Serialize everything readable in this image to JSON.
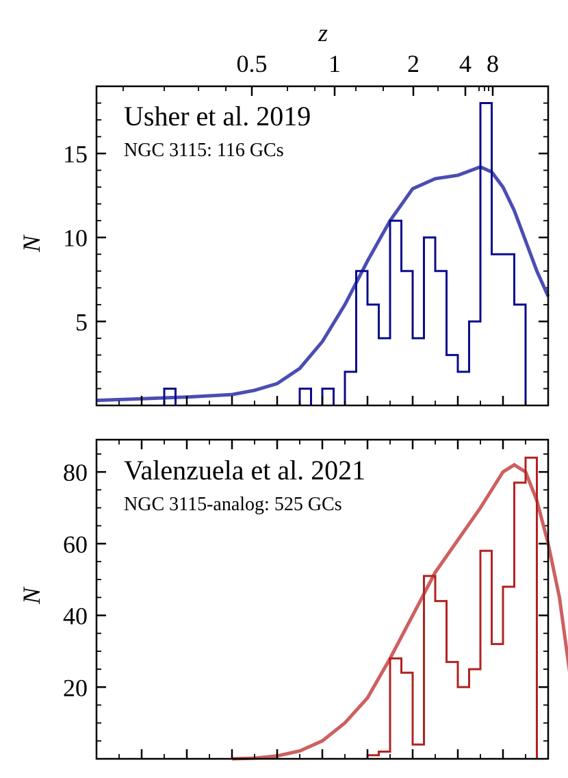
{
  "top_axis": {
    "label": "z",
    "tick_labels": [
      "0.5",
      "1",
      "2",
      "4",
      "8"
    ]
  },
  "chart_data": [
    {
      "type": "bar",
      "panel": "top",
      "title": "Usher et al. 2019",
      "subtitle": "NGC 3115: 116 GCs",
      "ylabel": "N",
      "xlabel": "",
      "ylim": [
        0,
        19
      ],
      "ytick_values": [
        5,
        10,
        15
      ],
      "ytick_labels": [
        "5",
        "10",
        "15"
      ],
      "yminor_step": 1,
      "hist_color": "#0b0b8c",
      "curve_color": "#4b4db4",
      "bins": [
        {
          "edges": [
            3.0,
            3.5
          ],
          "count": 1
        },
        {
          "edges": [
            9.0,
            9.5
          ],
          "count": 1
        },
        {
          "edges": [
            10.0,
            10.5
          ],
          "count": 1
        },
        {
          "edges": [
            11.0,
            11.5
          ],
          "count": 2
        },
        {
          "edges": [
            11.5,
            12.0
          ],
          "count": 8
        },
        {
          "edges": [
            12.0,
            12.5
          ],
          "count": 6
        },
        {
          "edges": [
            12.5,
            13.0
          ],
          "count": 4
        },
        {
          "edges": [
            13.0,
            13.5
          ],
          "count": 11
        },
        {
          "edges": [
            13.5,
            14.0
          ],
          "count": 8
        },
        {
          "edges": [
            14.0,
            14.5
          ],
          "count": 4
        },
        {
          "edges": [
            14.5,
            15.0
          ],
          "count": 10
        },
        {
          "edges": [
            15.0,
            15.5
          ],
          "count": 8
        },
        {
          "edges": [
            15.5,
            16.0
          ],
          "count": 3
        },
        {
          "edges": [
            16.0,
            16.5
          ],
          "count": 2
        },
        {
          "edges": [
            16.5,
            17.0
          ],
          "count": 5
        },
        {
          "edges": [
            17.0,
            17.5
          ],
          "count": 18
        },
        {
          "edges": [
            17.5,
            18.0
          ],
          "count": 9
        },
        {
          "edges": [
            18.0,
            18.5
          ],
          "count": 9
        },
        {
          "edges": [
            18.5,
            19.0
          ],
          "count": 6
        }
      ],
      "curve": {
        "x": [
          0,
          2,
          4,
          6,
          7,
          8,
          9,
          10,
          11,
          12,
          13,
          14,
          15,
          16,
          17,
          17.5,
          18,
          18.5,
          19,
          19.5,
          20
        ],
        "y": [
          0.3,
          0.4,
          0.5,
          0.65,
          0.9,
          1.3,
          2.2,
          3.8,
          6.0,
          8.6,
          11.0,
          12.9,
          13.5,
          13.7,
          14.2,
          13.9,
          13.0,
          11.6,
          9.8,
          8.0,
          6.5
        ]
      }
    },
    {
      "type": "bar",
      "panel": "bottom",
      "title": "Valenzuela et al. 2021",
      "subtitle": "NGC 3115-analog: 525 GCs",
      "ylabel": "N",
      "xlabel": "",
      "ylim": [
        0,
        89
      ],
      "ytick_values": [
        20,
        40,
        60,
        80
      ],
      "ytick_labels": [
        "20",
        "40",
        "60",
        "80"
      ],
      "yminor_step": 5,
      "hist_color": "#b22222",
      "curve_color": "#cd6060",
      "bins": [
        {
          "edges": [
            12.0,
            12.5
          ],
          "count": 1
        },
        {
          "edges": [
            12.5,
            13.0
          ],
          "count": 2
        },
        {
          "edges": [
            13.0,
            13.5
          ],
          "count": 28
        },
        {
          "edges": [
            13.5,
            14.0
          ],
          "count": 24
        },
        {
          "edges": [
            14.0,
            14.5
          ],
          "count": 4
        },
        {
          "edges": [
            14.5,
            15.0
          ],
          "count": 51
        },
        {
          "edges": [
            15.0,
            15.5
          ],
          "count": 44
        },
        {
          "edges": [
            15.5,
            16.0
          ],
          "count": 27
        },
        {
          "edges": [
            16.0,
            16.5
          ],
          "count": 20
        },
        {
          "edges": [
            16.5,
            17.0
          ],
          "count": 25
        },
        {
          "edges": [
            17.0,
            17.5
          ],
          "count": 58
        },
        {
          "edges": [
            17.5,
            18.0
          ],
          "count": 32
        },
        {
          "edges": [
            18.0,
            18.5
          ],
          "count": 48
        },
        {
          "edges": [
            18.5,
            19.0
          ],
          "count": 77
        },
        {
          "edges": [
            19.0,
            19.5
          ],
          "count": 84
        }
      ],
      "curve": {
        "x": [
          6,
          7,
          8,
          9,
          10,
          11,
          12,
          13,
          14,
          15,
          16,
          17,
          17.5,
          18,
          18.5,
          19,
          19.5,
          20,
          20.5,
          21
        ],
        "y": [
          0,
          0.2,
          0.8,
          2.2,
          5,
          10,
          17,
          28,
          40,
          52,
          61,
          70,
          75,
          80,
          82,
          80,
          72,
          60,
          45,
          22
        ]
      }
    }
  ]
}
